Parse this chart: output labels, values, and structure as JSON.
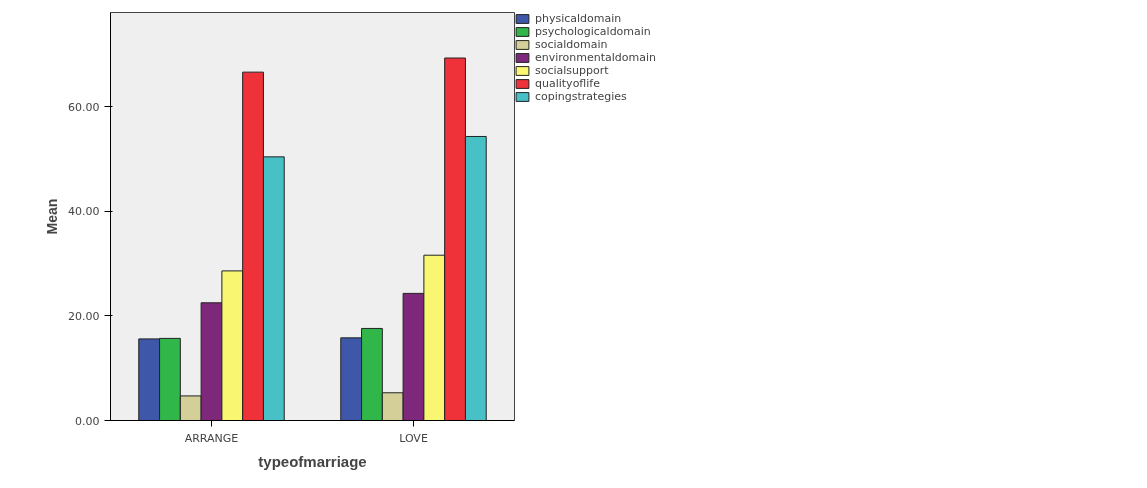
{
  "chart_data": {
    "type": "bar",
    "xlabel": "typeofmarriage",
    "ylabel": "Mean",
    "categories": [
      "ARRANGE",
      "LOVE"
    ],
    "series": [
      {
        "name": "physicaldomain",
        "color": "#3f57a8",
        "values": [
          15.6,
          15.8
        ]
      },
      {
        "name": "psychologicaldomain",
        "color": "#31b64a",
        "values": [
          15.7,
          17.6
        ]
      },
      {
        "name": "socialdomain",
        "color": "#d4cf98",
        "values": [
          4.7,
          5.3
        ]
      },
      {
        "name": "environmentaldomain",
        "color": "#7e287c",
        "values": [
          22.5,
          24.3
        ]
      },
      {
        "name": "socialsupport",
        "color": "#f9f772",
        "values": [
          28.6,
          31.6
        ]
      },
      {
        "name": "qualityoflife",
        "color": "#ef3139",
        "values": [
          66.6,
          69.3
        ]
      },
      {
        "name": "copingstrategies",
        "color": "#48c1c6",
        "values": [
          50.4,
          54.3
        ]
      }
    ],
    "ylim": [
      0,
      78
    ],
    "yticks": [
      {
        "value": 0,
        "label": "0.00"
      },
      {
        "value": 20,
        "label": "20.00"
      },
      {
        "value": 40,
        "label": "40.00"
      },
      {
        "value": 60,
        "label": "60.00"
      }
    ],
    "grid": false,
    "legend": "top right"
  }
}
